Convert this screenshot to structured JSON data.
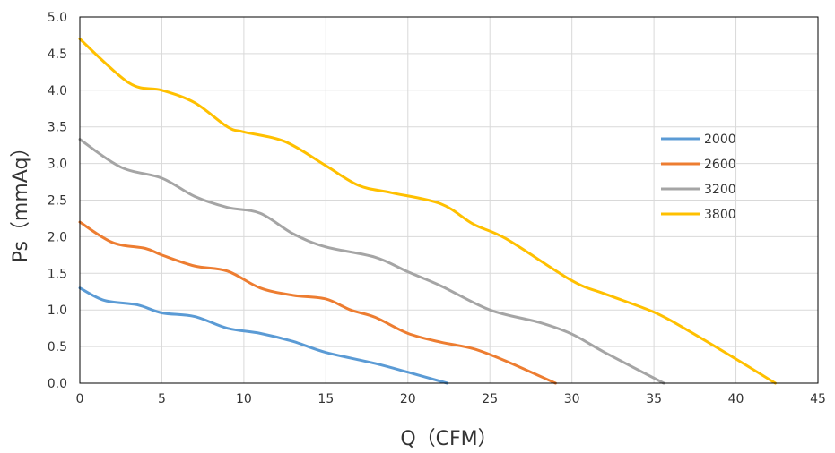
{
  "chart_data": {
    "type": "line",
    "xlabel": "Q（CFM）",
    "ylabel": "Ps（mmAq）",
    "xlim": [
      0,
      45
    ],
    "ylim": [
      0,
      5
    ],
    "xticks": [
      0,
      5,
      10,
      15,
      20,
      25,
      30,
      35,
      40,
      45
    ],
    "yticks": [
      "0.0",
      "0.5",
      "1.0",
      "1.5",
      "2.0",
      "2.5",
      "3.0",
      "3.5",
      "4.0",
      "4.5",
      "5.0"
    ],
    "grid": true,
    "legend": "right",
    "series": [
      {
        "name": "2000",
        "color": "#5B9BD5",
        "x": [
          0,
          1.5,
          3.5,
          5,
          7,
          9,
          11,
          13,
          15,
          18,
          20,
          22.4
        ],
        "y": [
          1.3,
          1.13,
          1.07,
          0.96,
          0.91,
          0.75,
          0.68,
          0.57,
          0.42,
          0.27,
          0.15,
          0.0
        ]
      },
      {
        "name": "2600",
        "color": "#ED7D31",
        "x": [
          0,
          2,
          4,
          5,
          7,
          9,
          11,
          13,
          15,
          16.5,
          18,
          20,
          22,
          24,
          26,
          29
        ],
        "y": [
          2.2,
          1.92,
          1.84,
          1.75,
          1.6,
          1.53,
          1.3,
          1.2,
          1.15,
          1.0,
          0.9,
          0.68,
          0.56,
          0.47,
          0.3,
          0.0
        ]
      },
      {
        "name": "3200",
        "color": "#A5A5A5",
        "x": [
          0,
          2.5,
          5,
          7,
          9,
          11,
          13,
          15,
          18,
          20,
          22,
          25,
          28,
          30,
          32,
          35.6
        ],
        "y": [
          3.33,
          2.95,
          2.8,
          2.55,
          2.4,
          2.32,
          2.04,
          1.86,
          1.72,
          1.52,
          1.33,
          1.0,
          0.83,
          0.67,
          0.42,
          0.0
        ]
      },
      {
        "name": "3800",
        "color": "#FFC000",
        "x": [
          0,
          3,
          5,
          7,
          9,
          10,
          12.5,
          15,
          17,
          19,
          22,
          24,
          26,
          30,
          32,
          35,
          37,
          40,
          42.4
        ],
        "y": [
          4.7,
          4.1,
          4.0,
          3.83,
          3.5,
          3.43,
          3.3,
          2.97,
          2.7,
          2.6,
          2.45,
          2.17,
          1.97,
          1.4,
          1.22,
          0.97,
          0.73,
          0.33,
          0.0
        ]
      }
    ]
  }
}
